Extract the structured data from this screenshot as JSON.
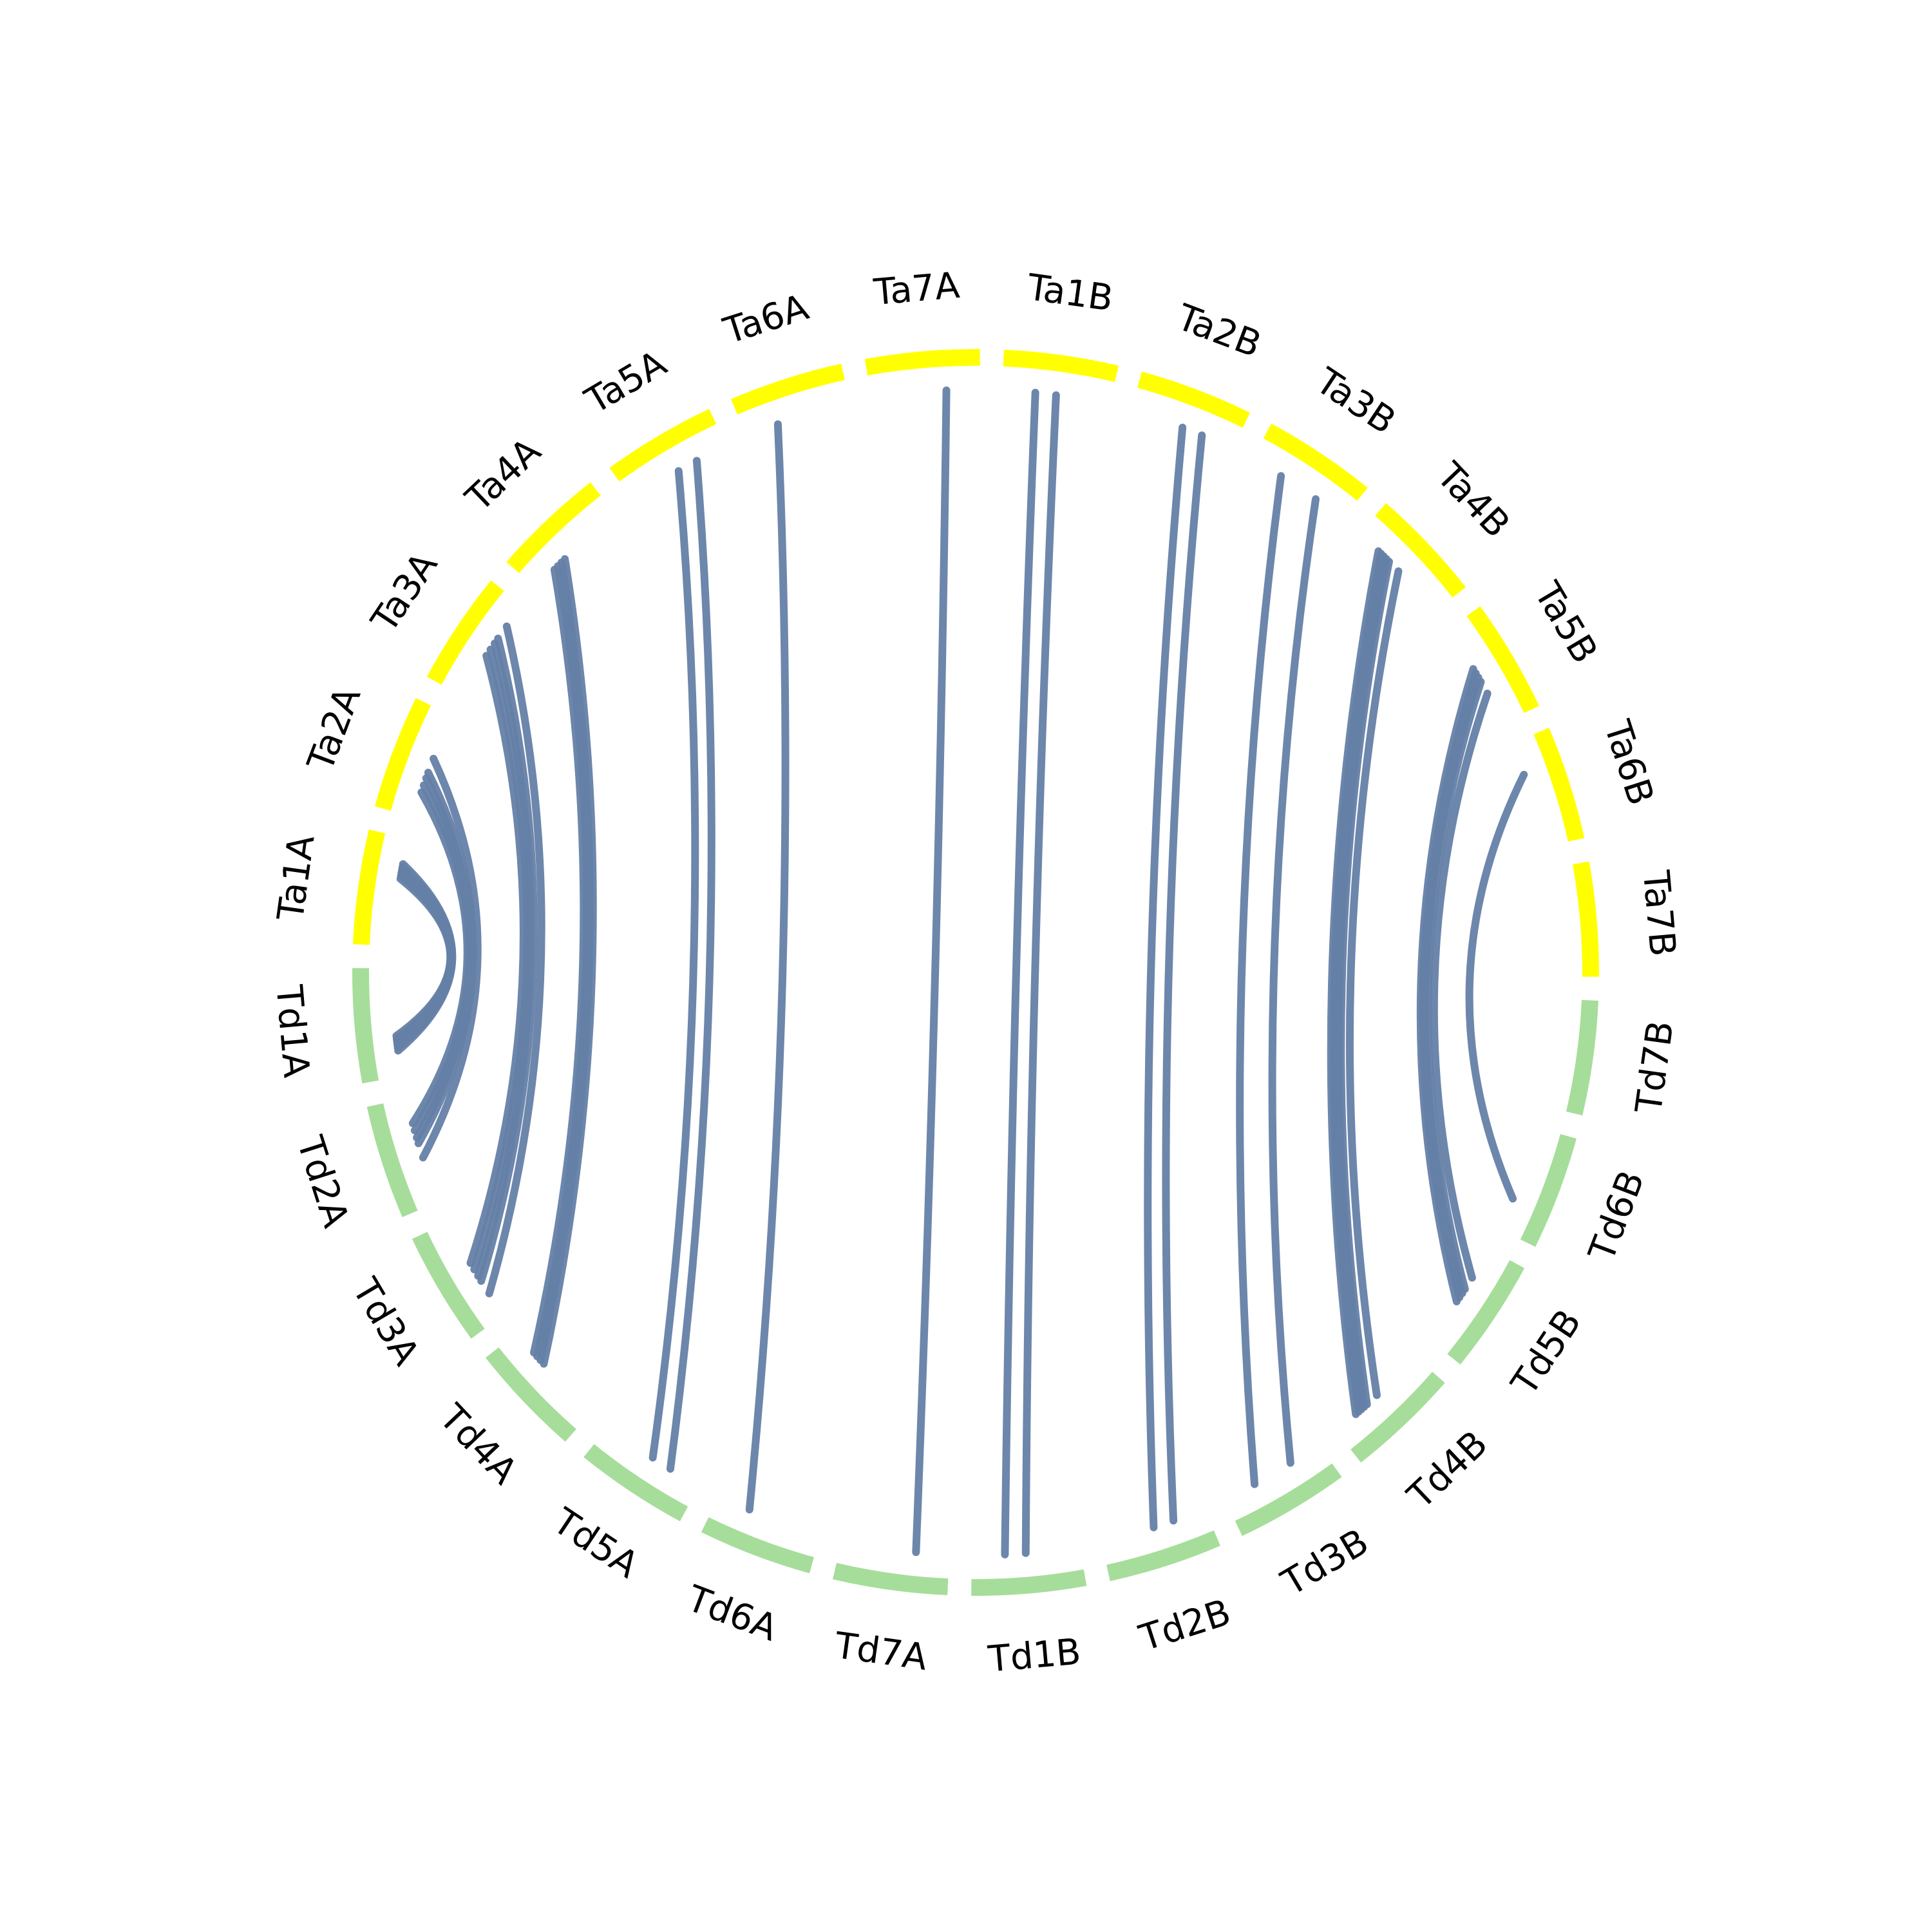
{
  "colors": {
    "td_segment": "#a6dd9a",
    "ta_segment": "#ffff00",
    "link": "#6580a6",
    "label": "#000000",
    "background": "#ffffff"
  },
  "chromosomes": [
    {
      "id": "Ta1A",
      "label": "Ta1A",
      "group": "Ta"
    },
    {
      "id": "Ta2A",
      "label": "Ta2A",
      "group": "Ta"
    },
    {
      "id": "Ta3A",
      "label": "Ta3A",
      "group": "Ta"
    },
    {
      "id": "Ta4A",
      "label": "Ta4A",
      "group": "Ta"
    },
    {
      "id": "Ta5A",
      "label": "Ta5A",
      "group": "Ta"
    },
    {
      "id": "Ta6A",
      "label": "Ta6A",
      "group": "Ta"
    },
    {
      "id": "Ta7A",
      "label": "Ta7A",
      "group": "Ta"
    },
    {
      "id": "Ta1B",
      "label": "Ta1B",
      "group": "Ta"
    },
    {
      "id": "Ta2B",
      "label": "Ta2B",
      "group": "Ta"
    },
    {
      "id": "Ta3B",
      "label": "Ta3B",
      "group": "Ta"
    },
    {
      "id": "Ta4B",
      "label": "Ta4B",
      "group": "Ta"
    },
    {
      "id": "Ta5B",
      "label": "Ta5B",
      "group": "Ta"
    },
    {
      "id": "Ta6B",
      "label": "Ta6B",
      "group": "Ta"
    },
    {
      "id": "Ta7B",
      "label": "Ta7B",
      "group": "Ta"
    },
    {
      "id": "Td7B",
      "label": "Td7B",
      "group": "Td"
    },
    {
      "id": "Td6B",
      "label": "Td6B",
      "group": "Td"
    },
    {
      "id": "Td5B",
      "label": "Td5B",
      "group": "Td"
    },
    {
      "id": "Td4B",
      "label": "Td4B",
      "group": "Td"
    },
    {
      "id": "Td3B",
      "label": "Td3B",
      "group": "Td"
    },
    {
      "id": "Td2B",
      "label": "Td2B",
      "group": "Td"
    },
    {
      "id": "Td1B",
      "label": "Td1B",
      "group": "Td"
    },
    {
      "id": "Td7A",
      "label": "Td7A",
      "group": "Td"
    },
    {
      "id": "Td6A",
      "label": "Td6A",
      "group": "Td"
    },
    {
      "id": "Td5A",
      "label": "Td5A",
      "group": "Td"
    },
    {
      "id": "Td4A",
      "label": "Td4A",
      "group": "Td"
    },
    {
      "id": "Td3A",
      "label": "Td3A",
      "group": "Td"
    },
    {
      "id": "Td2A",
      "label": "Td2A",
      "group": "Td"
    },
    {
      "id": "Td1A",
      "label": "Td1A",
      "group": "Td"
    }
  ],
  "links": [
    {
      "from": "Td1A",
      "to": "Ta1A",
      "count": 6
    },
    {
      "from": "Td2A",
      "to": "Ta2A",
      "count": 2
    },
    {
      "from": "Td2A",
      "to": "Ta2A",
      "count": 3
    },
    {
      "from": "Td3A",
      "to": "Ta3A",
      "count": 2
    },
    {
      "from": "Td3A",
      "to": "Ta3A",
      "count": 3
    },
    {
      "from": "Td4A",
      "to": "Ta4A",
      "count": 4
    },
    {
      "from": "Td5A",
      "to": "Ta5A",
      "count": 1
    },
    {
      "from": "Td5A",
      "to": "Ta5A",
      "count": 1
    },
    {
      "from": "Td6A",
      "to": "Ta6A",
      "count": 1
    },
    {
      "from": "Td7A",
      "to": "Ta7A",
      "count": 1
    },
    {
      "from": "Td1B",
      "to": "Ta1B",
      "count": 1
    },
    {
      "from": "Td1B",
      "to": "Ta1B",
      "count": 1
    },
    {
      "from": "Td2B",
      "to": "Ta2B",
      "count": 1
    },
    {
      "from": "Td2B",
      "to": "Ta2B",
      "count": 1
    },
    {
      "from": "Td3B",
      "to": "Ta3B",
      "count": 1
    },
    {
      "from": "Td3B",
      "to": "Ta3B",
      "count": 1
    },
    {
      "from": "Td4B",
      "to": "Ta4B",
      "count": 1
    },
    {
      "from": "Td4B",
      "to": "Ta4B",
      "count": 5
    },
    {
      "from": "Td5B",
      "to": "Ta5B",
      "count": 1
    },
    {
      "from": "Td5B",
      "to": "Ta5B",
      "count": 4
    },
    {
      "from": "Td6B",
      "to": "Ta6B",
      "count": 1
    }
  ]
}
